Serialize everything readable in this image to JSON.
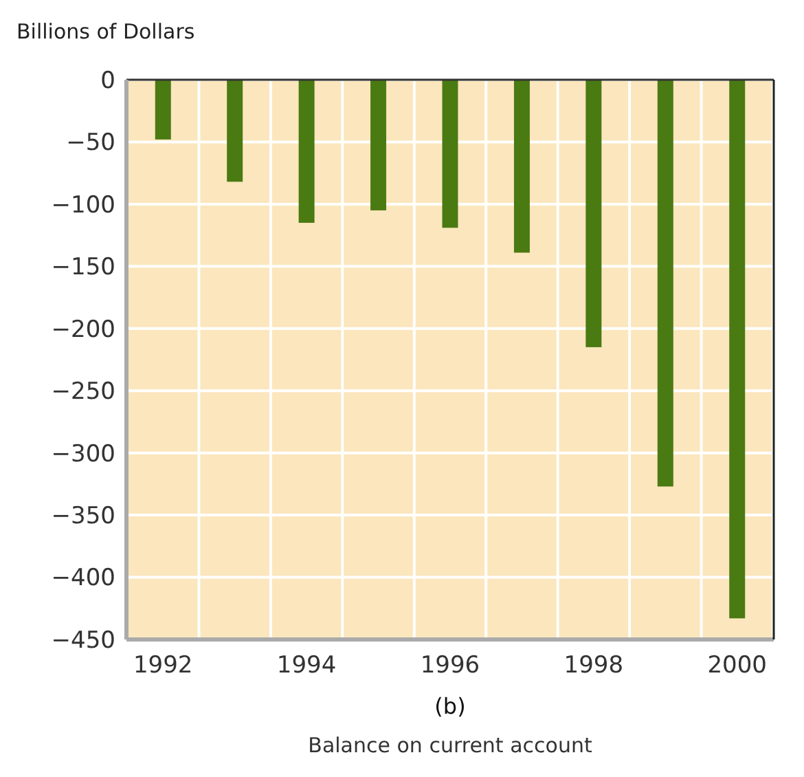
{
  "chart_data": {
    "type": "bar",
    "title": "(b)",
    "subtitle": "Balance on current account",
    "ylabel": "Billions of Dollars",
    "categories": [
      "1992",
      null,
      "1994",
      null,
      "1996",
      null,
      "1998",
      null,
      "2000"
    ],
    "values": [
      -48,
      -82,
      -115,
      -105,
      -119,
      -139,
      -215,
      -327,
      -433
    ],
    "color": "#4a7a12",
    "ylim": [
      -450,
      0
    ],
    "yticks": [
      {
        "value": 0,
        "label": "0"
      },
      {
        "value": -50,
        "label": "−50"
      },
      {
        "value": -100,
        "label": "−100"
      },
      {
        "value": -150,
        "label": "−150"
      },
      {
        "value": -200,
        "label": "−200"
      },
      {
        "value": -250,
        "label": "−250"
      },
      {
        "value": -300,
        "label": "−300"
      },
      {
        "value": -350,
        "label": "−350"
      },
      {
        "value": -400,
        "label": "−400"
      },
      {
        "value": -450,
        "label": "−450"
      }
    ],
    "grid": true
  }
}
